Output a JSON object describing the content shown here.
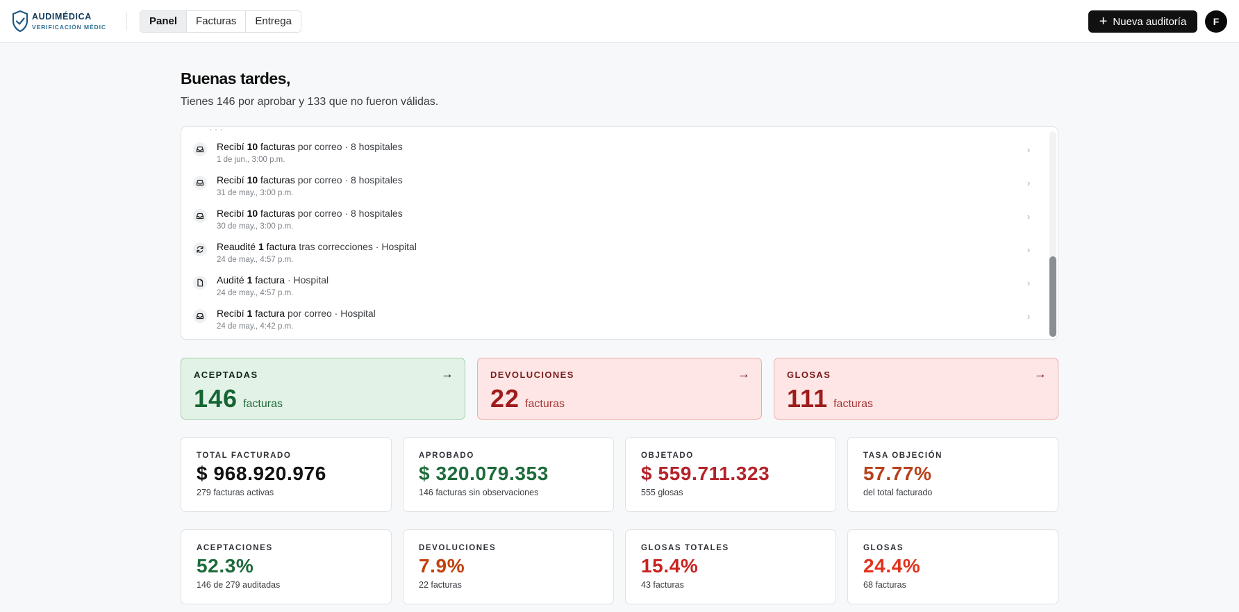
{
  "brand": {
    "name": "AUDIMÉDICA",
    "tagline": "VERIFICACIÓN MÉDIC"
  },
  "nav": {
    "tabs": [
      {
        "label": "Panel",
        "active": true
      },
      {
        "label": "Facturas",
        "active": false
      },
      {
        "label": "Entrega",
        "active": false
      }
    ]
  },
  "header": {
    "new_button_label": "Nueva auditoría",
    "avatar_initial": "F"
  },
  "greeting": {
    "title": "Buenas tardes,",
    "subtitle": "Tienes 146 por aprobar y 133 que no fueron válidas."
  },
  "activity": {
    "items": [
      {
        "icon": "inbox-icon",
        "verb": "Recibí",
        "count": "10",
        "object": "facturas",
        "rest": "por correo · 8 hospitales",
        "time": "1 de jun., 3:00 p.m."
      },
      {
        "icon": "inbox-icon",
        "verb": "Recibí",
        "count": "10",
        "object": "facturas",
        "rest": "por correo · 8 hospitales",
        "time": "31 de may., 3:00 p.m."
      },
      {
        "icon": "inbox-icon",
        "verb": "Recibí",
        "count": "10",
        "object": "facturas",
        "rest": "por correo · 8 hospitales",
        "time": "30 de may., 3:00 p.m."
      },
      {
        "icon": "refresh-icon",
        "verb": "Reaudité",
        "count": "1",
        "object": "factura",
        "rest": "tras correcciones · Hospital",
        "time": "24 de may., 4:57 p.m."
      },
      {
        "icon": "document-icon",
        "verb": "Audité",
        "count": "1",
        "object": "factura",
        "rest": "· Hospital",
        "time": "24 de may., 4:57 p.m."
      },
      {
        "icon": "inbox-icon",
        "verb": "Recibí",
        "count": "1",
        "object": "factura",
        "rest": "por correo · Hospital",
        "time": "24 de may., 4:42 p.m."
      }
    ]
  },
  "status_cards": [
    {
      "label": "ACEPTADAS",
      "value": "146",
      "unit": "facturas",
      "tone": "green"
    },
    {
      "label": "DEVOLUCIONES",
      "value": "22",
      "unit": "facturas",
      "tone": "red"
    },
    {
      "label": "GLOSAS",
      "value": "111",
      "unit": "facturas",
      "tone": "red"
    }
  ],
  "metrics_row1": [
    {
      "label": "TOTAL FACTURADO",
      "value": "$ 968.920.976",
      "sub": "279 facturas activas",
      "color": "#111111"
    },
    {
      "label": "APROBADO",
      "value": "$ 320.079.353",
      "sub": "146 facturas sin observaciones",
      "color": "#1d6b3a"
    },
    {
      "label": "OBJETADO",
      "value": "$ 559.711.323",
      "sub": "555 glosas",
      "color": "#b4232a"
    },
    {
      "label": "TASA OBJECIÓN",
      "value": "57.77%",
      "sub": "del total facturado",
      "color": "#b7411a"
    }
  ],
  "metrics_row2": [
    {
      "label": "ACEPTACIONES",
      "value": "52.3%",
      "sub": "146 de 279 auditadas",
      "color": "#1d6b3a"
    },
    {
      "label": "DEVOLUCIONES",
      "value": "7.9%",
      "sub": "22 facturas",
      "color": "#c2410c"
    },
    {
      "label": "GLOSAS TOTALES",
      "value": "15.4%",
      "sub": "43 facturas",
      "color": "#c8231f"
    },
    {
      "label": "GLOSAS",
      "value": "24.4%",
      "sub": "68 facturas",
      "color": "#e0321c"
    }
  ]
}
